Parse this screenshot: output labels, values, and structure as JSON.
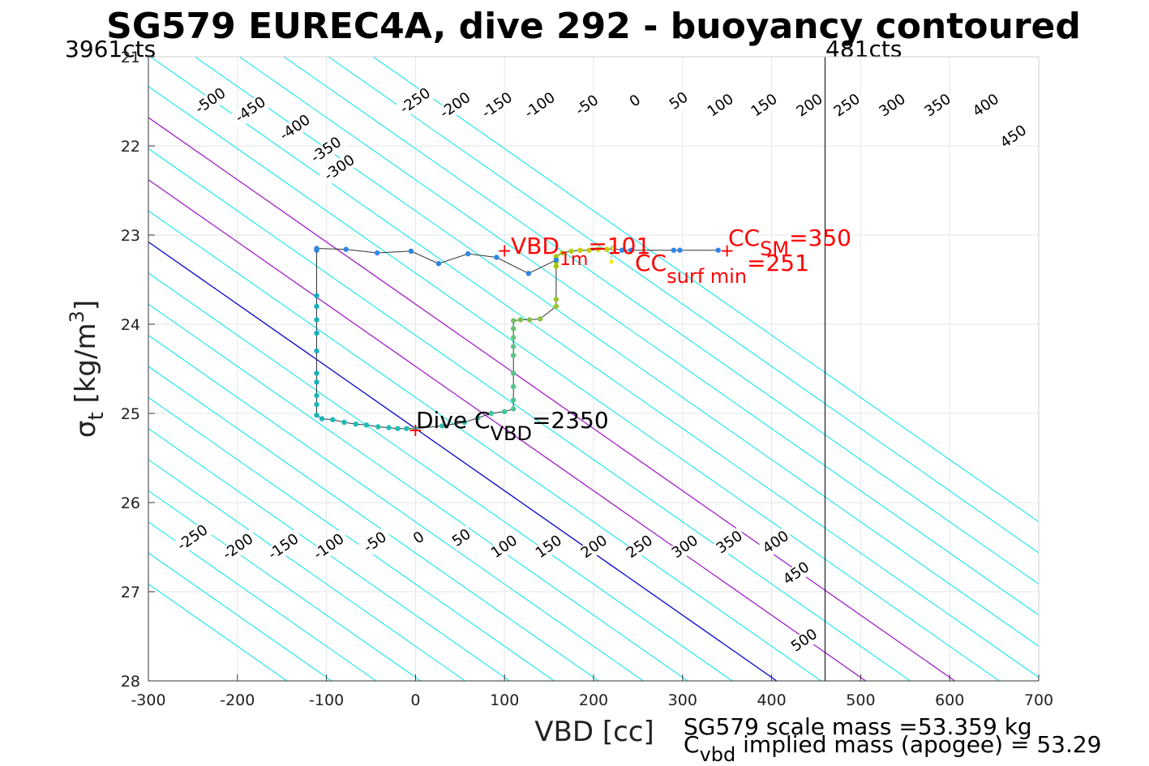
{
  "chart_data": {
    "type": "scatter",
    "title": "SG579 EUREC4A, dive 292 - buoyancy contoured",
    "xlabel": "VBD [cc]",
    "ylabel_main": "σ",
    "ylabel_sub": "t",
    "ylabel_rest": " [kg/m",
    "ylabel_sup": "3",
    "ylabel_end": "]",
    "xlim": [
      -300,
      700
    ],
    "ylim": [
      21,
      28
    ],
    "y_reversed": true,
    "grid": true,
    "x_ticks": [
      -300,
      -200,
      -100,
      0,
      100,
      200,
      300,
      400,
      500,
      600,
      700
    ],
    "y_ticks": [
      21,
      22,
      23,
      24,
      25,
      26,
      27,
      28
    ],
    "top_left_label": "3961cts",
    "top_right_label": "481cts",
    "vbd_limit_x": 460,
    "contours": {
      "color": "#00e5e5",
      "zero_color": "#0000cc",
      "highlight_color": "#a020c8",
      "highlight_levels": [
        100,
        200
      ],
      "levels": [
        -550,
        -500,
        -450,
        -400,
        -350,
        -300,
        -250,
        -200,
        -150,
        -100,
        -50,
        0,
        50,
        100,
        150,
        200,
        250,
        300,
        350,
        400,
        450,
        500,
        550
      ],
      "top_labels": [
        {
          "text": "-500",
          "x": -230,
          "y": 21.5
        },
        {
          "text": "-450",
          "x": -185,
          "y": 21.6
        },
        {
          "text": "-400",
          "x": -135,
          "y": 21.8
        },
        {
          "text": "-350",
          "x": -100,
          "y": 22.05
        },
        {
          "text": "-300",
          "x": -85,
          "y": 22.25
        },
        {
          "text": "-250",
          "x": 0,
          "y": 21.5
        },
        {
          "text": "-200",
          "x": 45,
          "y": 21.55
        },
        {
          "text": "-150",
          "x": 92,
          "y": 21.55
        },
        {
          "text": "-100",
          "x": 140,
          "y": 21.55
        },
        {
          "text": "-50",
          "x": 193,
          "y": 21.55
        },
        {
          "text": "0",
          "x": 247,
          "y": 21.5
        },
        {
          "text": "50",
          "x": 296,
          "y": 21.5
        },
        {
          "text": "100",
          "x": 343,
          "y": 21.55
        },
        {
          "text": "150",
          "x": 392,
          "y": 21.55
        },
        {
          "text": "200",
          "x": 443,
          "y": 21.55
        },
        {
          "text": "250",
          "x": 485,
          "y": 21.55
        },
        {
          "text": "300",
          "x": 536,
          "y": 21.55
        },
        {
          "text": "350",
          "x": 587,
          "y": 21.55
        },
        {
          "text": "400",
          "x": 641,
          "y": 21.55
        },
        {
          "text": "450",
          "x": 672,
          "y": 21.9
        }
      ],
      "bottom_labels": [
        {
          "text": "-250",
          "x": -250,
          "y": 26.4
        },
        {
          "text": "-200",
          "x": -199,
          "y": 26.5
        },
        {
          "text": "-150",
          "x": -148,
          "y": 26.5
        },
        {
          "text": "-100",
          "x": -97,
          "y": 26.5
        },
        {
          "text": "-50",
          "x": -45,
          "y": 26.45
        },
        {
          "text": "0",
          "x": 4,
          "y": 26.4
        },
        {
          "text": "50",
          "x": 52,
          "y": 26.4
        },
        {
          "text": "100",
          "x": 100,
          "y": 26.5
        },
        {
          "text": "150",
          "x": 150,
          "y": 26.5
        },
        {
          "text": "200",
          "x": 201,
          "y": 26.5
        },
        {
          "text": "250",
          "x": 252,
          "y": 26.5
        },
        {
          "text": "300",
          "x": 303,
          "y": 26.5
        },
        {
          "text": "350",
          "x": 353,
          "y": 26.45
        },
        {
          "text": "400",
          "x": 405,
          "y": 26.45
        },
        {
          "text": "450",
          "x": 428,
          "y": 26.8
        },
        {
          "text": "500",
          "x": 437,
          "y": 27.55
        }
      ]
    },
    "track": [
      {
        "x": 340,
        "y": 23.17,
        "c": "#2e86e6"
      },
      {
        "x": 297,
        "y": 23.17,
        "c": "#2e86e6"
      },
      {
        "x": 290,
        "y": 23.17,
        "c": "#2e86e6"
      },
      {
        "x": 242,
        "y": 23.17,
        "c": "#2e86e6"
      },
      {
        "x": 232,
        "y": 23.17,
        "c": "#2e86e6"
      },
      {
        "x": 222,
        "y": 23.15,
        "c": "#2e86e6"
      },
      {
        "x": 215,
        "y": 23.16,
        "c": "#c8d000"
      },
      {
        "x": 205,
        "y": 23.16,
        "c": "#c8d000"
      },
      {
        "x": 195,
        "y": 23.17,
        "c": "#c8d000"
      },
      {
        "x": 185,
        "y": 23.17,
        "c": "#c8d000"
      },
      {
        "x": 175,
        "y": 23.18,
        "c": "#b5cc00"
      },
      {
        "x": 165,
        "y": 23.2,
        "c": "#b5cc00"
      },
      {
        "x": 158,
        "y": 23.24,
        "c": "#a8c800"
      },
      {
        "x": 158,
        "y": 23.3,
        "c": "#a8c800"
      },
      {
        "x": 158,
        "y": 23.35,
        "c": "#a8c800"
      },
      {
        "x": 158,
        "y": 23.72,
        "c": "#9cc430"
      },
      {
        "x": 158,
        "y": 23.8,
        "c": "#9cc430"
      },
      {
        "x": 140,
        "y": 23.94,
        "c": "#8cc040"
      },
      {
        "x": 128,
        "y": 23.95,
        "c": "#8cc040"
      },
      {
        "x": 118,
        "y": 23.95,
        "c": "#7cc050"
      },
      {
        "x": 110,
        "y": 23.96,
        "c": "#74c060"
      },
      {
        "x": 110,
        "y": 24.05,
        "c": "#6cc070"
      },
      {
        "x": 110,
        "y": 24.15,
        "c": "#66c27a"
      },
      {
        "x": 110,
        "y": 24.25,
        "c": "#60c480"
      },
      {
        "x": 110,
        "y": 24.35,
        "c": "#5cc486"
      },
      {
        "x": 110,
        "y": 24.55,
        "c": "#58c48a"
      },
      {
        "x": 110,
        "y": 24.7,
        "c": "#54c48e"
      },
      {
        "x": 110,
        "y": 24.85,
        "c": "#50c492"
      },
      {
        "x": 110,
        "y": 24.95,
        "c": "#4cc496"
      },
      {
        "x": 100,
        "y": 24.98,
        "c": "#44c49c"
      },
      {
        "x": 85,
        "y": 25.0,
        "c": "#3cc4a0"
      },
      {
        "x": 70,
        "y": 25.05,
        "c": "#36c2a6"
      },
      {
        "x": 55,
        "y": 25.1,
        "c": "#30c2aa"
      },
      {
        "x": 30,
        "y": 25.14,
        "c": "#2ac0ae"
      },
      {
        "x": 0,
        "y": 25.17,
        "c": "#24c0b2"
      },
      {
        "x": -10,
        "y": 25.17,
        "c": "#22bfb4"
      },
      {
        "x": -20,
        "y": 25.17,
        "c": "#22bfb4"
      },
      {
        "x": -30,
        "y": 25.16,
        "c": "#20bdb6"
      },
      {
        "x": -42,
        "y": 25.15,
        "c": "#20bdb6"
      },
      {
        "x": -55,
        "y": 25.13,
        "c": "#1ebbb8"
      },
      {
        "x": -67,
        "y": 25.12,
        "c": "#1ebbb8"
      },
      {
        "x": -80,
        "y": 25.1,
        "c": "#1cb9ba"
      },
      {
        "x": -93,
        "y": 25.07,
        "c": "#1cb9ba"
      },
      {
        "x": -105,
        "y": 25.06,
        "c": "#1ab7bc"
      },
      {
        "x": -111,
        "y": 25.02,
        "c": "#18b5be"
      },
      {
        "x": -111,
        "y": 24.9,
        "c": "#18b5be"
      },
      {
        "x": -111,
        "y": 24.8,
        "c": "#18b5be"
      },
      {
        "x": -111,
        "y": 24.65,
        "c": "#16b3c0"
      },
      {
        "x": -111,
        "y": 24.55,
        "c": "#16b3c0"
      },
      {
        "x": -111,
        "y": 24.3,
        "c": "#14b1c2"
      },
      {
        "x": -111,
        "y": 24.1,
        "c": "#14b1c2"
      },
      {
        "x": -111,
        "y": 23.95,
        "c": "#12afc4"
      },
      {
        "x": -111,
        "y": 23.8,
        "c": "#12afc4"
      },
      {
        "x": -111,
        "y": 23.68,
        "c": "#10adc6"
      },
      {
        "x": -111,
        "y": 23.17,
        "c": "#2e86e6"
      },
      {
        "x": -111,
        "y": 23.15,
        "c": "#2e86e6"
      },
      {
        "x": -78,
        "y": 23.16,
        "c": "#2e86e6"
      },
      {
        "x": -43,
        "y": 23.2,
        "c": "#2e86e6"
      },
      {
        "x": -5,
        "y": 23.18,
        "c": "#2e86e6"
      },
      {
        "x": 26,
        "y": 23.32,
        "c": "#2e86e6"
      },
      {
        "x": 59,
        "y": 23.21,
        "c": "#2e86e6"
      },
      {
        "x": 91,
        "y": 23.25,
        "c": "#2e86e6"
      },
      {
        "x": 127,
        "y": 23.43,
        "c": "#2e86e6"
      },
      {
        "x": 158,
        "y": 23.28,
        "c": "#2e86e6"
      }
    ],
    "markers": [
      {
        "x": 100,
        "y": 23.17,
        "text": "+"
      },
      {
        "x": 0,
        "y": 25.18,
        "text": "+"
      },
      {
        "x": 350,
        "y": 23.17,
        "text": "+"
      }
    ],
    "yellow_points": [
      {
        "x": 220,
        "y": 23.3
      },
      {
        "x": 222,
        "y": 23.15
      }
    ],
    "annotations": {
      "vbd_main": "VBD",
      "vbd_sub": "1m",
      "vbd_value": "=101",
      "ccsm_main": "CC",
      "ccsm_sub": "SM",
      "ccsm_value": "=350",
      "ccsurf_main": "CC",
      "ccsurf_sub": "surf min",
      "ccsurf_value": "=251",
      "dive_main": "Dive C",
      "dive_sub": "VBD",
      "dive_value": "=2350"
    },
    "notes": {
      "scale_mass": "SG579 scale mass =53.359 kg",
      "implied_main": "C",
      "implied_sub": "vbd",
      "implied_rest": " implied mass (apogee) = 53.29"
    }
  }
}
